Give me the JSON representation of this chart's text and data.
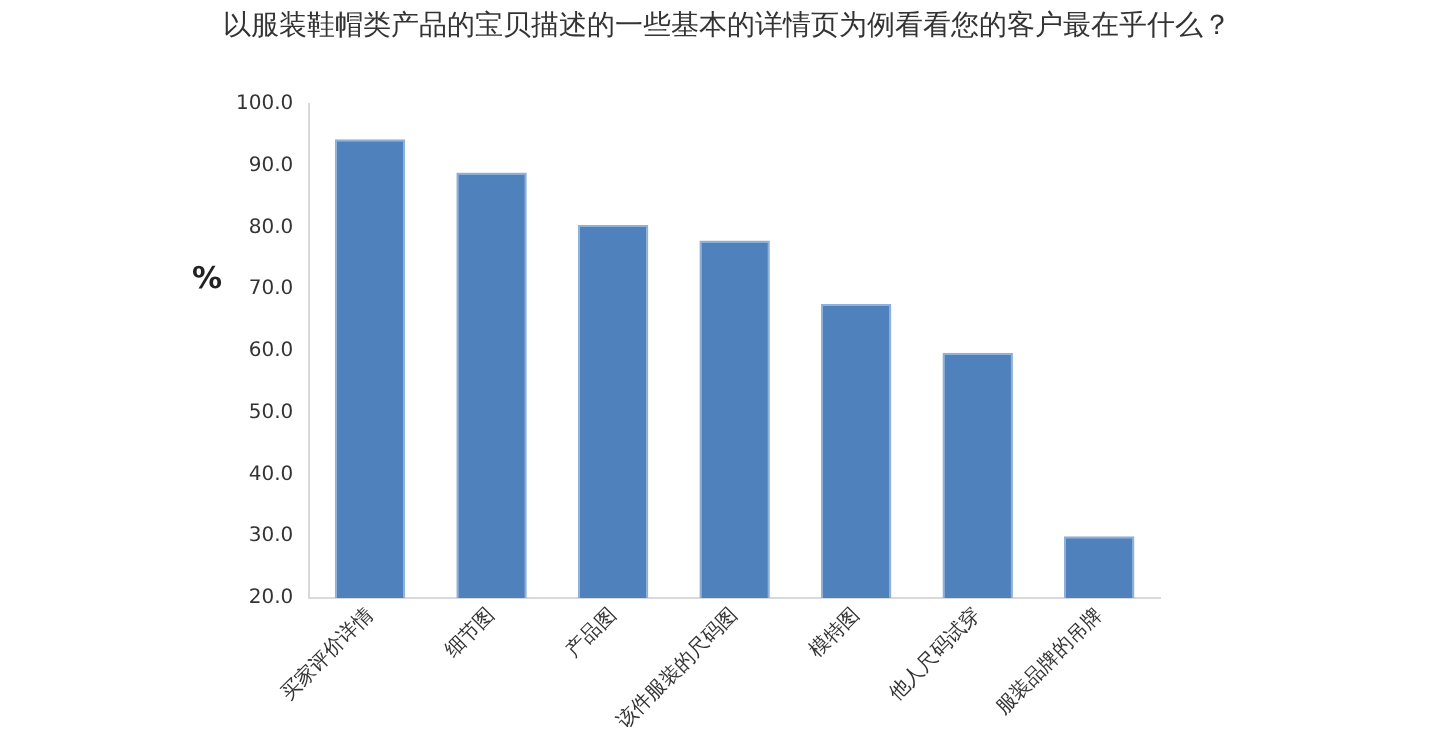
{
  "chart_data": {
    "type": "bar",
    "title": "以服装鞋帽类产品的宝贝描述的一些基本的详情页为例看看您的客户最在乎什么？",
    "ylabel": "%",
    "categories": [
      "买家评价详情",
      "细节图",
      "产品图",
      "该件服装的尺码图",
      "模特图",
      "他人尺码试穿",
      "服装品牌的吊牌"
    ],
    "values": [
      94.3,
      88.9,
      80.4,
      77.9,
      67.6,
      59.7,
      30.0
    ],
    "color": "#4f81bd",
    "ylim": [
      20,
      100
    ],
    "yticks": [
      {
        "value": 20,
        "label": "20.0"
      },
      {
        "value": 30,
        "label": "30.0"
      },
      {
        "value": 40,
        "label": "40.0"
      },
      {
        "value": 50,
        "label": "50.0"
      },
      {
        "value": 60,
        "label": "60.0"
      },
      {
        "value": 70,
        "label": "70.0"
      },
      {
        "value": 80,
        "label": "80.0"
      },
      {
        "value": 90,
        "label": "90.0"
      },
      {
        "value": 100,
        "label": "100.0"
      }
    ],
    "grid": false,
    "legend": false
  }
}
